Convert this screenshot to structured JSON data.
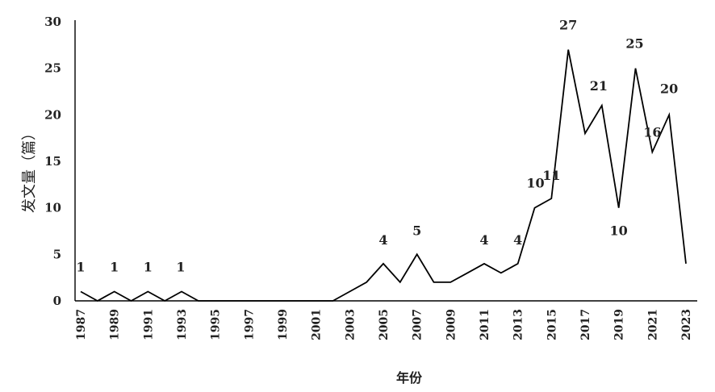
{
  "chart_data": {
    "type": "line",
    "title": "",
    "xlabel": "年份",
    "ylabel": "发文量（篇）",
    "ylim": [
      0,
      30
    ],
    "yticks": [
      0,
      5,
      10,
      15,
      20,
      25,
      30
    ],
    "xticks": [
      "1987",
      "1989",
      "1991",
      "1993",
      "1995",
      "1997",
      "1999",
      "2001",
      "2003",
      "2005",
      "2007",
      "2009",
      "2011",
      "2013",
      "2015",
      "2017",
      "2019",
      "2021",
      "2023"
    ],
    "grid": false,
    "legend": "none",
    "series": [
      {
        "x": [
          1987,
          1988,
          1989,
          1990,
          1991,
          1992,
          1993,
          1994,
          1995,
          1996,
          1997,
          1998,
          1999,
          2000,
          2001,
          2002,
          2003,
          2004,
          2005,
          2006,
          2007,
          2008,
          2009,
          2010,
          2011,
          2012,
          2013,
          2014,
          2015,
          2016,
          2017,
          2018,
          2019,
          2020,
          2021,
          2022,
          2023
        ],
        "values": [
          1,
          0,
          1,
          0,
          1,
          0,
          1,
          0,
          0,
          0,
          0,
          0,
          0,
          0,
          0,
          0,
          1,
          2,
          4,
          2,
          5,
          2,
          2,
          3,
          4,
          3,
          4,
          10,
          11,
          27,
          18,
          21,
          10,
          25,
          16,
          20,
          4
        ]
      }
    ],
    "data_labels": [
      {
        "x": 1987,
        "text": "1"
      },
      {
        "x": 1989,
        "text": "1"
      },
      {
        "x": 1991,
        "text": "1"
      },
      {
        "x": 1993,
        "text": "1"
      },
      {
        "x": 2005,
        "text": "4"
      },
      {
        "x": 2007,
        "text": "5"
      },
      {
        "x": 2011,
        "text": "4"
      },
      {
        "x": 2013,
        "text": "4"
      },
      {
        "x": 2014,
        "text": "10"
      },
      {
        "x": 2015,
        "text": "11"
      },
      {
        "x": 2016,
        "text": "27"
      },
      {
        "x": 2018,
        "text": "21"
      },
      {
        "x": 2019,
        "text": "10"
      },
      {
        "x": 2020,
        "text": "25"
      },
      {
        "x": 2021,
        "text": "16"
      },
      {
        "x": 2022,
        "text": "20"
      }
    ]
  }
}
